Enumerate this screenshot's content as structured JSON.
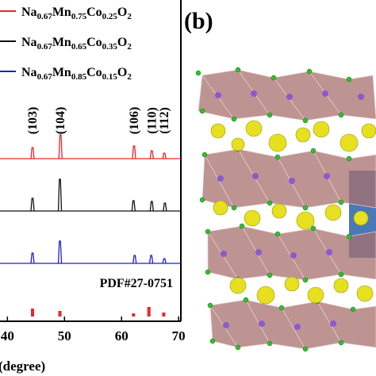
{
  "chart_data": {
    "type": "xrd",
    "panel_label": "(b)",
    "x_label": "(degree)",
    "xlim": [
      38.7,
      70.4
    ],
    "xticks": [
      40,
      50,
      60,
      70
    ],
    "series": [
      {
        "name": "Na0.67Mn0.75Co0.25O2",
        "color": "#e8262b",
        "x": [
          44.4,
          49.3,
          62.2,
          65.3,
          67.5
        ],
        "values": [
          14,
          30,
          16,
          10,
          7
        ]
      },
      {
        "name": "Na0.67Mn0.65Co0.35O2",
        "color": "#111111",
        "x": [
          44.4,
          49.2,
          62.1,
          65.3,
          67.6
        ],
        "values": [
          16,
          40,
          13,
          12,
          10
        ]
      },
      {
        "name": "Na0.67Mn0.85Co0.15O2",
        "color": "#1c22c8",
        "x": [
          44.4,
          49.2,
          62.3,
          65.2,
          67.5
        ],
        "values": [
          13,
          28,
          10,
          10,
          6
        ]
      }
    ],
    "reference": {
      "name": "PDF#27-0751",
      "color": "#e8262b",
      "x": [
        44.4,
        49.2,
        62.1,
        64.8,
        67.4
      ],
      "values": [
        10,
        7,
        4,
        12,
        5
      ]
    },
    "peak_labels": [
      {
        "x": 44.4,
        "label": "(103)"
      },
      {
        "x": 49.3,
        "label": "(104)"
      },
      {
        "x": 62.2,
        "label": "(106)"
      },
      {
        "x": 65.3,
        "label": "(110)"
      },
      {
        "x": 67.5,
        "label": "(112)"
      }
    ]
  }
}
